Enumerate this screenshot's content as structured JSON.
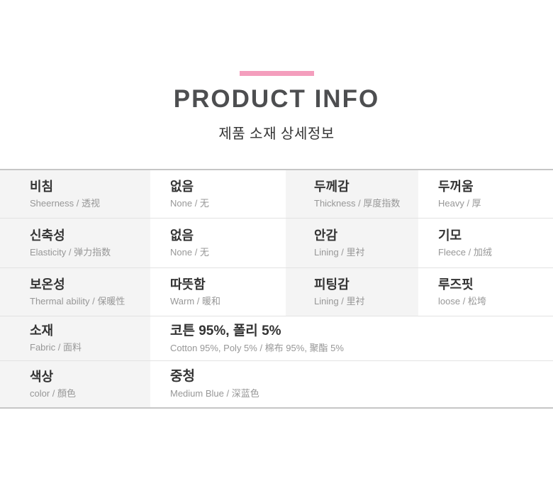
{
  "header": {
    "accent_color": "#F49EBD",
    "title": "PRODUCT INFO",
    "subtitle": "제품 소재 상세정보"
  },
  "table": {
    "label_bg_color": "#f4f4f4",
    "rows": [
      {
        "label1": {
          "main": "비침",
          "sub": "Sheerness / 透视"
        },
        "value1": {
          "main": "없음",
          "sub": "None / 无"
        },
        "label2": {
          "main": "두께감",
          "sub": "Thickness / 厚度指数"
        },
        "value2": {
          "main": "두꺼움",
          "sub": "Heavy / 厚"
        }
      },
      {
        "label1": {
          "main": "신축성",
          "sub": "Elasticity / 弹力指数"
        },
        "value1": {
          "main": "없음",
          "sub": "None / 无"
        },
        "label2": {
          "main": "안감",
          "sub": "Lining / 里衬"
        },
        "value2": {
          "main": "기모",
          "sub": "Fleece / 加绒"
        }
      },
      {
        "label1": {
          "main": "보온성",
          "sub": "Thermal ability / 保暖性"
        },
        "value1": {
          "main": "따뜻함",
          "sub": "Warm / 暖和"
        },
        "label2": {
          "main": "피팅감",
          "sub": "Lining / 里衬"
        },
        "value2": {
          "main": "루즈핏",
          "sub": "loose / 松垮"
        }
      },
      {
        "label1": {
          "main": "소재",
          "sub": "Fabric / 面料"
        },
        "value_full": {
          "main": "코튼 95%, 폴리 5%",
          "sub": "Cotton 95%, Poly 5% / 棉布 95%, 聚酯 5%"
        }
      },
      {
        "label1": {
          "main": "색상",
          "sub": "color / 顏色"
        },
        "value_full": {
          "main": "중청",
          "sub": "Medium Blue / 深蓝色"
        }
      }
    ]
  }
}
